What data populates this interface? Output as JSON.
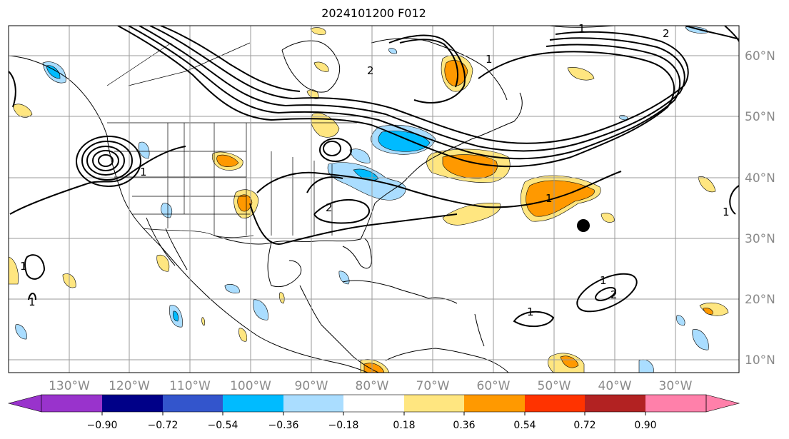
{
  "title": "2024101200 F012",
  "map": {
    "projection": "PlateCarree",
    "lon_range": [
      -140,
      -17
    ],
    "lat_range": [
      8,
      65
    ],
    "lon_labels": [
      "130°W",
      "120°W",
      "110°W",
      "100°W",
      "90°W",
      "80°W",
      "70°W",
      "60°W",
      "50°W",
      "40°W",
      "30°W"
    ],
    "lat_labels": [
      "60°N",
      "50°N",
      "40°N",
      "30°N",
      "20°N",
      "10°N"
    ],
    "grid": true,
    "marker": {
      "label": "point marker",
      "lon": -45.2,
      "lat": 32.2
    }
  },
  "contour_labels": [
    "1",
    "2",
    "1",
    "1",
    "2",
    "1",
    "1",
    "1",
    "1",
    "2",
    "1",
    "2",
    "1"
  ],
  "colorbar": {
    "colors": [
      "#9933cc",
      "#000088",
      "#3355cc",
      "#00bbff",
      "#aaddff",
      "#ffffff",
      "#ffe680",
      "#ff9900",
      "#ff3300",
      "#b22222",
      "#ff80aa"
    ],
    "tick_labels": [
      "−0.90",
      "−0.72",
      "−0.54",
      "−0.36",
      "−0.18",
      "0.18",
      "0.36",
      "0.54",
      "0.72",
      "0.90"
    ],
    "extend": "both"
  }
}
